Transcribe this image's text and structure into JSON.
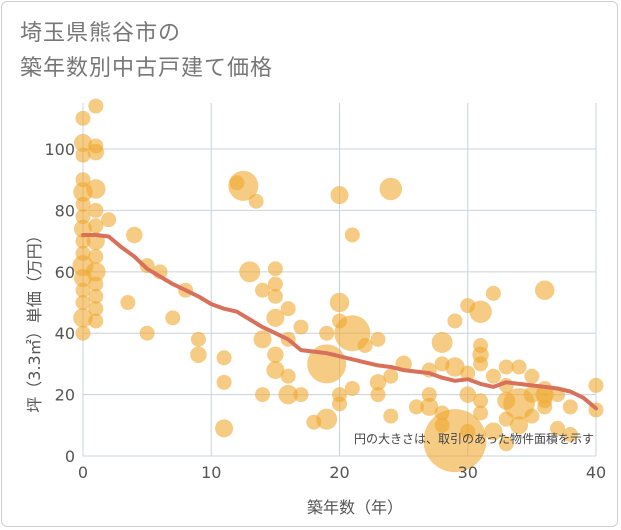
{
  "title": "埼玉県熊谷市の\n築年数別中古戸建て価格",
  "colors": {
    "bubble": "#f0a830",
    "trend": "#d9705a",
    "grid": "#c8d4dc",
    "text": "#555555"
  },
  "chart_data": {
    "type": "scatter",
    "title": "埼玉県熊谷市の\n築年数別中古戸建て価格",
    "xlabel": "築年数（年）",
    "ylabel": "坪（3.3㎡）単価（万円）",
    "xlim": [
      0,
      40
    ],
    "ylim": [
      0,
      115
    ],
    "xticks": [
      0,
      10,
      20,
      30,
      40
    ],
    "yticks": [
      0,
      20,
      40,
      60,
      80,
      100
    ],
    "grid": true,
    "note": "円の大きさは、取引のあった物件面積を示す",
    "points": [
      {
        "x": 0,
        "y": 110,
        "s": 1
      },
      {
        "x": 0,
        "y": 102,
        "s": 1.2
      },
      {
        "x": 0,
        "y": 98,
        "s": 1
      },
      {
        "x": 0,
        "y": 90,
        "s": 1
      },
      {
        "x": 0,
        "y": 86,
        "s": 1.3
      },
      {
        "x": 0,
        "y": 82,
        "s": 1
      },
      {
        "x": 0,
        "y": 78,
        "s": 1
      },
      {
        "x": 0,
        "y": 74,
        "s": 1.2
      },
      {
        "x": 0,
        "y": 70,
        "s": 1
      },
      {
        "x": 0,
        "y": 66,
        "s": 1
      },
      {
        "x": 0,
        "y": 62,
        "s": 1.4
      },
      {
        "x": 0,
        "y": 58,
        "s": 1.2
      },
      {
        "x": 0,
        "y": 54,
        "s": 1
      },
      {
        "x": 0,
        "y": 50,
        "s": 1
      },
      {
        "x": 0,
        "y": 45,
        "s": 1.3
      },
      {
        "x": 0,
        "y": 40,
        "s": 1
      },
      {
        "x": 1,
        "y": 114,
        "s": 1
      },
      {
        "x": 1,
        "y": 101,
        "s": 1
      },
      {
        "x": 1,
        "y": 99,
        "s": 1.1
      },
      {
        "x": 1,
        "y": 87,
        "s": 1.3
      },
      {
        "x": 1,
        "y": 80,
        "s": 1
      },
      {
        "x": 1,
        "y": 75,
        "s": 1
      },
      {
        "x": 1,
        "y": 70,
        "s": 1.2
      },
      {
        "x": 1,
        "y": 65,
        "s": 1
      },
      {
        "x": 1,
        "y": 60,
        "s": 1.3
      },
      {
        "x": 1,
        "y": 56,
        "s": 1
      },
      {
        "x": 1,
        "y": 52,
        "s": 1
      },
      {
        "x": 1,
        "y": 48,
        "s": 1
      },
      {
        "x": 1,
        "y": 44,
        "s": 1
      },
      {
        "x": 2,
        "y": 77,
        "s": 1
      },
      {
        "x": 3.5,
        "y": 50,
        "s": 1
      },
      {
        "x": 4,
        "y": 72,
        "s": 1.1
      },
      {
        "x": 5,
        "y": 62,
        "s": 1
      },
      {
        "x": 5,
        "y": 40,
        "s": 1
      },
      {
        "x": 6,
        "y": 60,
        "s": 1
      },
      {
        "x": 7,
        "y": 45,
        "s": 1
      },
      {
        "x": 8,
        "y": 54,
        "s": 1
      },
      {
        "x": 9,
        "y": 38,
        "s": 1
      },
      {
        "x": 9,
        "y": 33,
        "s": 1.1
      },
      {
        "x": 11,
        "y": 32,
        "s": 1
      },
      {
        "x": 11,
        "y": 24,
        "s": 1
      },
      {
        "x": 11,
        "y": 9,
        "s": 1.2
      },
      {
        "x": 12,
        "y": 89,
        "s": 1
      },
      {
        "x": 12.5,
        "y": 88,
        "s": 2
      },
      {
        "x": 13,
        "y": 60,
        "s": 1.4
      },
      {
        "x": 13.5,
        "y": 83,
        "s": 1
      },
      {
        "x": 14,
        "y": 54,
        "s": 1
      },
      {
        "x": 14,
        "y": 38,
        "s": 1.2
      },
      {
        "x": 14,
        "y": 20,
        "s": 1
      },
      {
        "x": 15,
        "y": 61,
        "s": 1
      },
      {
        "x": 15,
        "y": 56,
        "s": 1
      },
      {
        "x": 15,
        "y": 52,
        "s": 1
      },
      {
        "x": 15,
        "y": 45,
        "s": 1.2
      },
      {
        "x": 15,
        "y": 33,
        "s": 1.1
      },
      {
        "x": 15,
        "y": 28,
        "s": 1.2
      },
      {
        "x": 16,
        "y": 48,
        "s": 1
      },
      {
        "x": 16,
        "y": 38,
        "s": 1
      },
      {
        "x": 16,
        "y": 26,
        "s": 1
      },
      {
        "x": 16,
        "y": 20,
        "s": 1.3
      },
      {
        "x": 17,
        "y": 42,
        "s": 1
      },
      {
        "x": 17,
        "y": 20,
        "s": 1
      },
      {
        "x": 18,
        "y": 11,
        "s": 1
      },
      {
        "x": 19,
        "y": 40,
        "s": 1
      },
      {
        "x": 19,
        "y": 30,
        "s": 2.6
      },
      {
        "x": 19,
        "y": 12,
        "s": 1.4
      },
      {
        "x": 20,
        "y": 85,
        "s": 1.2
      },
      {
        "x": 20,
        "y": 50,
        "s": 1.3
      },
      {
        "x": 20,
        "y": 44,
        "s": 1
      },
      {
        "x": 20,
        "y": 20,
        "s": 1
      },
      {
        "x": 20,
        "y": 17,
        "s": 1
      },
      {
        "x": 21,
        "y": 72,
        "s": 1
      },
      {
        "x": 21,
        "y": 40,
        "s": 2.4
      },
      {
        "x": 21,
        "y": 22,
        "s": 1
      },
      {
        "x": 22,
        "y": 36,
        "s": 1
      },
      {
        "x": 23,
        "y": 38,
        "s": 1
      },
      {
        "x": 23,
        "y": 24,
        "s": 1.1
      },
      {
        "x": 23,
        "y": 20,
        "s": 1
      },
      {
        "x": 24,
        "y": 87,
        "s": 1.5
      },
      {
        "x": 24,
        "y": 26,
        "s": 1
      },
      {
        "x": 24,
        "y": 13,
        "s": 1
      },
      {
        "x": 25,
        "y": 30,
        "s": 1.1
      },
      {
        "x": 26,
        "y": 16,
        "s": 1
      },
      {
        "x": 27,
        "y": 28,
        "s": 1
      },
      {
        "x": 27,
        "y": 20,
        "s": 1
      },
      {
        "x": 27,
        "y": 16,
        "s": 1.2
      },
      {
        "x": 28,
        "y": 37,
        "s": 1.4
      },
      {
        "x": 28,
        "y": 30,
        "s": 1
      },
      {
        "x": 28,
        "y": 14,
        "s": 1
      },
      {
        "x": 28,
        "y": 10,
        "s": 1
      },
      {
        "x": 29,
        "y": 44,
        "s": 1
      },
      {
        "x": 29,
        "y": 29,
        "s": 1.3
      },
      {
        "x": 29,
        "y": 5,
        "s": 4.2
      },
      {
        "x": 30,
        "y": 49,
        "s": 1
      },
      {
        "x": 30,
        "y": 27,
        "s": 1
      },
      {
        "x": 30,
        "y": 20,
        "s": 1.1
      },
      {
        "x": 30,
        "y": 8,
        "s": 1
      },
      {
        "x": 31,
        "y": 47,
        "s": 1.5
      },
      {
        "x": 31,
        "y": 36,
        "s": 1
      },
      {
        "x": 31,
        "y": 33,
        "s": 1.1
      },
      {
        "x": 31,
        "y": 30,
        "s": 1
      },
      {
        "x": 31,
        "y": 18,
        "s": 1
      },
      {
        "x": 31,
        "y": 14,
        "s": 1
      },
      {
        "x": 32,
        "y": 53,
        "s": 1
      },
      {
        "x": 32,
        "y": 26,
        "s": 1
      },
      {
        "x": 32,
        "y": 8,
        "s": 1.2
      },
      {
        "x": 33,
        "y": 29,
        "s": 1
      },
      {
        "x": 33,
        "y": 23,
        "s": 1
      },
      {
        "x": 33,
        "y": 18,
        "s": 1.2
      },
      {
        "x": 33,
        "y": 12,
        "s": 1
      },
      {
        "x": 33,
        "y": 4,
        "s": 1
      },
      {
        "x": 34,
        "y": 29,
        "s": 1
      },
      {
        "x": 34,
        "y": 17,
        "s": 2.1
      },
      {
        "x": 34,
        "y": 10,
        "s": 1.2
      },
      {
        "x": 35,
        "y": 26,
        "s": 1
      },
      {
        "x": 35,
        "y": 20,
        "s": 1.1
      },
      {
        "x": 35,
        "y": 13,
        "s": 1
      },
      {
        "x": 36,
        "y": 54,
        "s": 1.3
      },
      {
        "x": 36,
        "y": 22,
        "s": 1
      },
      {
        "x": 36,
        "y": 20,
        "s": 1.2
      },
      {
        "x": 36,
        "y": 18,
        "s": 1
      },
      {
        "x": 36,
        "y": 16,
        "s": 1
      },
      {
        "x": 37,
        "y": 20,
        "s": 1
      },
      {
        "x": 37,
        "y": 9,
        "s": 1
      },
      {
        "x": 38,
        "y": 16,
        "s": 1
      },
      {
        "x": 38,
        "y": 7,
        "s": 1
      },
      {
        "x": 40,
        "y": 23,
        "s": 1
      },
      {
        "x": 40,
        "y": 15,
        "s": 1
      }
    ],
    "trend": {
      "x": [
        0,
        1,
        2,
        3,
        4,
        5,
        6,
        7,
        8,
        9,
        10,
        11,
        12,
        13,
        14,
        15,
        16,
        17,
        18,
        19,
        20,
        21,
        22,
        23,
        24,
        25,
        26,
        27,
        28,
        29,
        30,
        31,
        32,
        33,
        34,
        35,
        36,
        37,
        38,
        39,
        40
      ],
      "y": [
        72,
        72,
        71.5,
        68,
        65,
        61,
        58.5,
        56,
        54,
        52,
        49.5,
        48,
        47,
        44.5,
        42,
        40,
        38,
        34.5,
        34,
        33.5,
        32.5,
        31.5,
        30.5,
        29.5,
        29,
        28,
        27.5,
        27,
        25.5,
        24.5,
        25,
        23.5,
        22.5,
        24,
        23.5,
        23,
        22.5,
        22,
        21,
        19,
        15.5
      ]
    }
  }
}
